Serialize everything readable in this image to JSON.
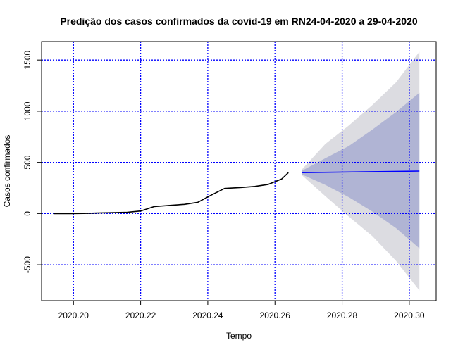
{
  "chart_data": {
    "type": "line",
    "title": "Predição dos casos confirmados da covid-19 em RN24-04-2020 a 29-04-2020",
    "xlabel": "Tempo",
    "ylabel": "Casos confirmados",
    "xlim": [
      2020.1905,
      2020.308
    ],
    "ylim": [
      -850,
      1680
    ],
    "x_ticks": [
      2020.2,
      2020.22,
      2020.24,
      2020.26,
      2020.28,
      2020.3
    ],
    "x_tick_labels": [
      "2020.20",
      "2020.22",
      "2020.24",
      "2020.26",
      "2020.28",
      "2020.30"
    ],
    "y_ticks": [
      -500,
      0,
      500,
      1000,
      1500
    ],
    "y_tick_labels": [
      "-500",
      "0",
      "500",
      "1000",
      "1500"
    ],
    "grid": true,
    "grid_color": "#0000ff",
    "series": [
      {
        "role": "observed",
        "color": "#000000",
        "x": [
          2020.194,
          2020.199,
          2020.203,
          2020.207,
          2020.212,
          2020.216,
          2020.22,
          2020.224,
          2020.229,
          2020.233,
          2020.237,
          2020.241,
          2020.245,
          2020.25,
          2020.254,
          2020.258,
          2020.262,
          2020.264
        ],
        "y": [
          0,
          0,
          1,
          5,
          9,
          12,
          25,
          68,
          80,
          90,
          110,
          180,
          245,
          255,
          265,
          285,
          338,
          400
        ]
      },
      {
        "role": "forecast_mean",
        "color": "#0000ff",
        "x": [
          2020.268,
          2020.303
        ],
        "y": [
          400,
          415
        ]
      }
    ],
    "forecast_intervals": [
      {
        "level": 95,
        "color": "#dcdce1",
        "x": [
          2020.268,
          2020.275,
          2020.282,
          2020.289,
          2020.296,
          2020.303
        ],
        "upper": [
          430,
          680,
          860,
          1060,
          1280,
          1580
        ],
        "lower": [
          375,
          170,
          -30,
          -220,
          -460,
          -750
        ]
      },
      {
        "level": 80,
        "color": "#b0b4d4",
        "x": [
          2020.268,
          2020.275,
          2020.282,
          2020.289,
          2020.296,
          2020.303
        ],
        "upper": [
          418,
          540,
          660,
          820,
          990,
          1180
        ],
        "lower": [
          383,
          280,
          160,
          20,
          -140,
          -340
        ]
      }
    ]
  }
}
